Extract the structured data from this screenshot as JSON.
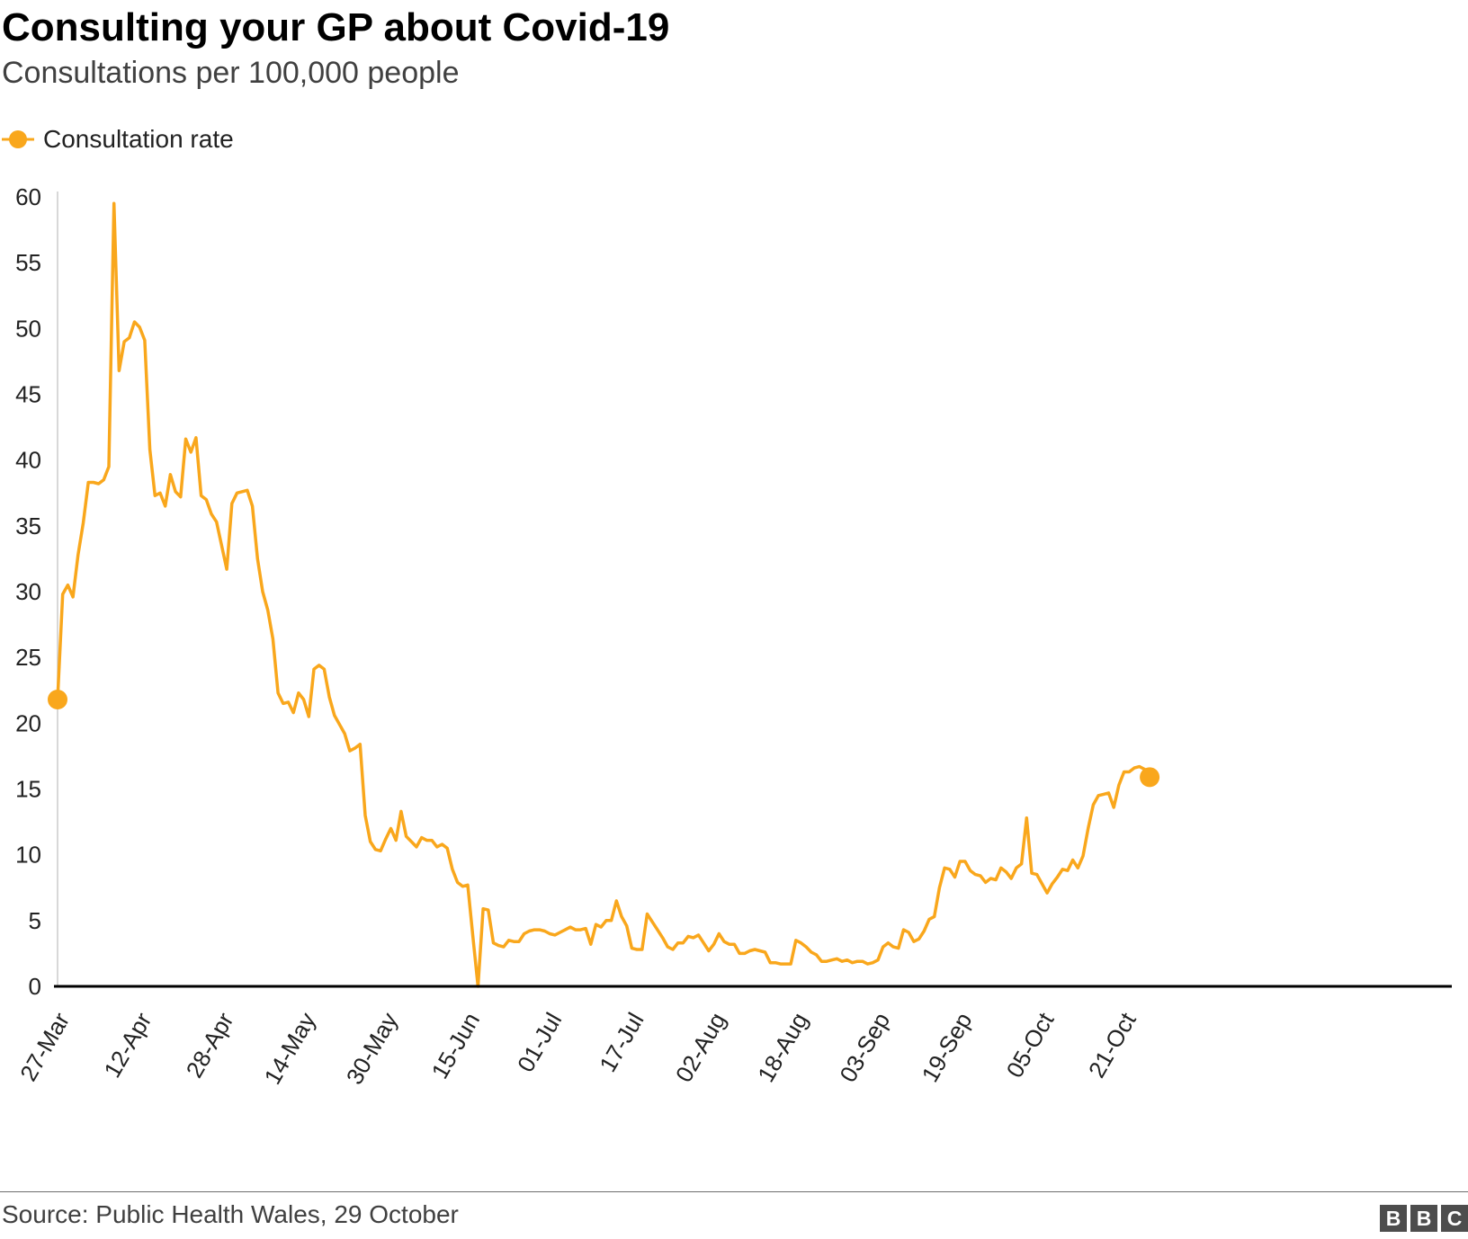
{
  "title": "Consulting your GP about Covid-19",
  "subtitle": "Consultations per 100,000 people",
  "source": "Source: Public Health Wales, 29 October",
  "logo_letters": [
    "B",
    "B",
    "C"
  ],
  "colors": {
    "series": "#f9a71c",
    "axis": "#000000",
    "text": "#222222",
    "rule": "#6e6e6e"
  },
  "chart_data": {
    "type": "line",
    "title": "Consulting your GP about Covid-19",
    "subtitle": "Consultations per 100,000 people",
    "ylim": [
      0,
      60
    ],
    "yticks": [
      0,
      5,
      10,
      15,
      20,
      25,
      30,
      35,
      40,
      45,
      50,
      55,
      60
    ],
    "x_start": "2020-03-27",
    "xticks": [
      "27-Mar",
      "12-Apr",
      "28-Apr",
      "14-May",
      "30-May",
      "15-Jun",
      "01-Jul",
      "17-Jul",
      "02-Aug",
      "18-Aug",
      "03-Sep",
      "19-Sep",
      "05-Oct",
      "21-Oct"
    ],
    "grid": false,
    "legend_position": "top-left",
    "series": [
      {
        "name": "Consultation rate",
        "color": "#f9a71c",
        "markers": "endpoints",
        "values": [
          21.8,
          29.8,
          30.5,
          29.6,
          32.8,
          35.2,
          38.3,
          38.3,
          38.2,
          38.5,
          39.5,
          59.5,
          46.8,
          49.0,
          49.3,
          50.5,
          50.1,
          49.1,
          40.8,
          37.3,
          37.5,
          36.5,
          38.9,
          37.6,
          37.2,
          41.6,
          40.6,
          41.7,
          37.3,
          37.0,
          35.9,
          35.3,
          33.5,
          31.7,
          36.7,
          37.5,
          37.6,
          37.7,
          36.5,
          32.5,
          30.0,
          28.6,
          26.4,
          22.3,
          21.5,
          21.6,
          20.8,
          22.3,
          21.8,
          20.5,
          24.1,
          24.4,
          24.1,
          22.0,
          20.6,
          19.9,
          19.2,
          17.9,
          18.1,
          18.4,
          13.0,
          11.0,
          10.4,
          10.3,
          11.2,
          12.0,
          11.1,
          13.3,
          11.4,
          11.0,
          10.6,
          11.3,
          11.1,
          11.1,
          10.6,
          10.8,
          10.5,
          8.9,
          7.9,
          7.6,
          7.7,
          3.8,
          0.0,
          5.9,
          5.8,
          3.3,
          3.1,
          3.0,
          3.5,
          3.4,
          3.4,
          4.0,
          4.2,
          4.3,
          4.3,
          4.2,
          4.0,
          3.9,
          4.1,
          4.3,
          4.5,
          4.3,
          4.3,
          4.4,
          3.2,
          4.7,
          4.5,
          5.0,
          5.0,
          6.5,
          5.3,
          4.6,
          2.9,
          2.8,
          2.8,
          5.5,
          4.9,
          4.3,
          3.7,
          3.0,
          2.8,
          3.3,
          3.3,
          3.8,
          3.7,
          3.9,
          3.3,
          2.7,
          3.2,
          4.0,
          3.4,
          3.2,
          3.2,
          2.5,
          2.5,
          2.7,
          2.8,
          2.7,
          2.6,
          1.8,
          1.8,
          1.7,
          1.7,
          1.7,
          3.5,
          3.3,
          3.0,
          2.6,
          2.4,
          1.9,
          1.9,
          2.0,
          2.1,
          1.9,
          2.0,
          1.8,
          1.9,
          1.9,
          1.7,
          1.8,
          2.0,
          3.0,
          3.3,
          3.0,
          2.9,
          4.3,
          4.1,
          3.4,
          3.6,
          4.2,
          5.1,
          5.3,
          7.5,
          9.0,
          8.9,
          8.3,
          9.5,
          9.5,
          8.8,
          8.5,
          8.4,
          7.9,
          8.2,
          8.1,
          9.0,
          8.7,
          8.2,
          9.0,
          9.3,
          12.8,
          8.6,
          8.5,
          7.8,
          7.1,
          7.8,
          8.3,
          8.9,
          8.8,
          9.6,
          9.0,
          9.9,
          12.0,
          13.8,
          14.5,
          14.6,
          14.7,
          13.6,
          15.3,
          16.3,
          16.3,
          16.6,
          16.7,
          16.5,
          15.9
        ]
      }
    ]
  }
}
